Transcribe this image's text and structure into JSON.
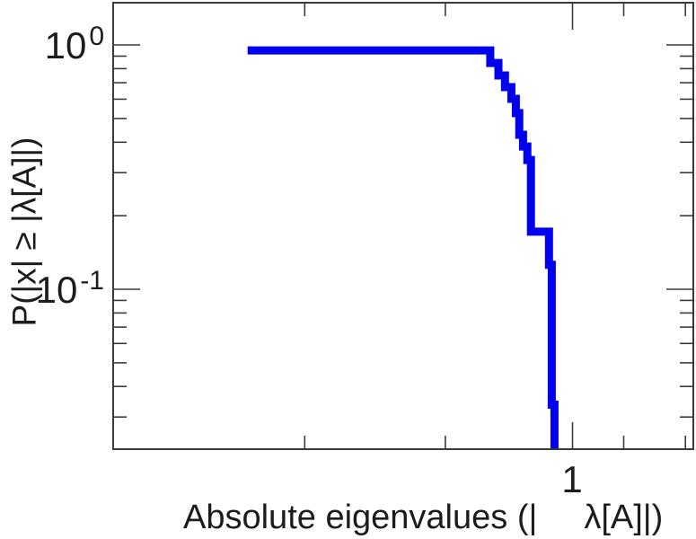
{
  "figure": {
    "background": "#ffffff",
    "frame_color": "#3a3a3a",
    "text_color": "#1c1c1c"
  },
  "chart_data": {
    "type": "line",
    "subtype": "empirical-ccdf-staircase",
    "title": "",
    "xlabel": "Absolute eigenvalues (|λ[A]|)",
    "xlabel_part1": "Absolute eigenvalues (|",
    "xlabel_part2": "λ[A]|)",
    "ylabel": "P(|x| ≥ |λ[A]|)",
    "x_scale": "log",
    "y_scale": "log",
    "xlim": [
      0.1962,
      1.5346
    ],
    "ylim": [
      0.02216,
      1.4889
    ],
    "grid": false,
    "legend": "none",
    "line_color": "#0000ee",
    "line_width": 9,
    "x_ticks": {
      "major": [
        1
      ],
      "minor": [
        0.387,
        0.637,
        1.199,
        1.492
      ],
      "labels": [
        {
          "value": 1,
          "text": "1"
        }
      ]
    },
    "y_ticks": {
      "major": [
        1,
        0.1
      ],
      "minor": [
        0.9,
        0.8,
        0.7,
        0.6,
        0.5,
        0.4,
        0.3,
        0.2,
        0.09,
        0.08,
        0.07,
        0.06,
        0.05,
        0.04,
        0.03
      ],
      "labels": [
        {
          "value": 1,
          "base": "10",
          "exp": "0"
        },
        {
          "value": 0.1,
          "base": "10",
          "exp": "-1"
        }
      ]
    },
    "points": [
      [
        0.316,
        0.95
      ],
      [
        0.747,
        0.95
      ],
      [
        0.747,
        0.844
      ],
      [
        0.769,
        0.844
      ],
      [
        0.769,
        0.75
      ],
      [
        0.787,
        0.75
      ],
      [
        0.787,
        0.672
      ],
      [
        0.805,
        0.672
      ],
      [
        0.805,
        0.602
      ],
      [
        0.818,
        0.602
      ],
      [
        0.818,
        0.526
      ],
      [
        0.828,
        0.526
      ],
      [
        0.828,
        0.429
      ],
      [
        0.839,
        0.429
      ],
      [
        0.839,
        0.384
      ],
      [
        0.852,
        0.384
      ],
      [
        0.852,
        0.338
      ],
      [
        0.863,
        0.338
      ],
      [
        0.863,
        0.172
      ],
      [
        0.92,
        0.172
      ],
      [
        0.92,
        0.126
      ],
      [
        0.929,
        0.126
      ],
      [
        0.929,
        0.0337
      ],
      [
        0.938,
        0.0337
      ],
      [
        0.938,
        0.021
      ]
    ]
  }
}
